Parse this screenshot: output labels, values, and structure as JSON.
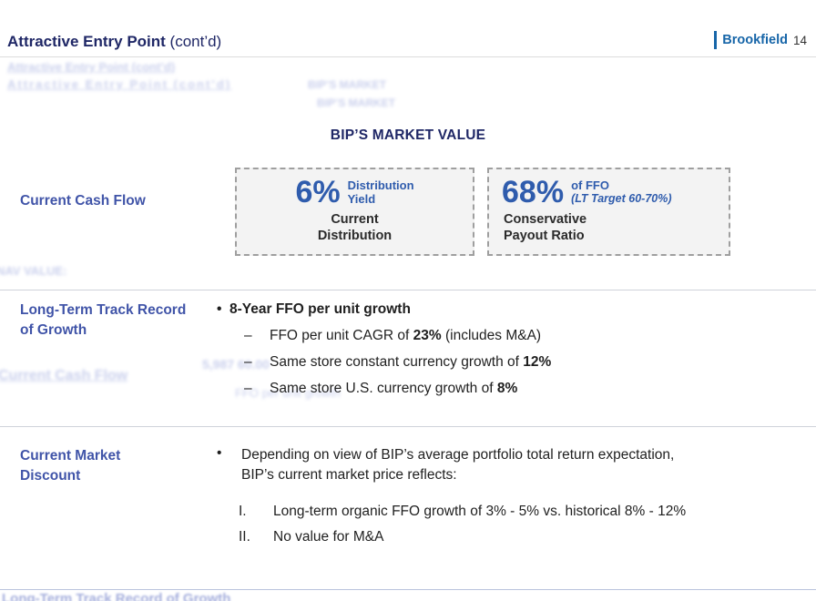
{
  "header": {
    "title_main": "Attractive Entry Point",
    "title_suffix": " (cont’d)",
    "brand": "Brookfield",
    "page_number": "14"
  },
  "heading": "BIP’S MARKET VALUE",
  "glyphs": {
    "bullet": "•",
    "dash": "–"
  },
  "colors": {
    "navy": "#1f2766",
    "label_blue": "#4054a8",
    "metric_blue": "#2f5cad",
    "brand_blue": "#1665a8"
  },
  "sections": {
    "cash_flow": {
      "label": "Current Cash Flow",
      "boxes": [
        {
          "big": "6%",
          "side_line1": "Distribution",
          "side_line2": "Yield",
          "caption_line1": "Current",
          "caption_line2": "Distribution"
        },
        {
          "big": "68%",
          "side_line1": "of FFO",
          "side_line2": "(LT Target 60-70%)",
          "caption_line1": "Conservative",
          "caption_line2": "Payout Ratio"
        }
      ]
    },
    "growth": {
      "label": "Long-Term Track Record of Growth",
      "bullet_title": "8-Year FFO per unit growth",
      "items": [
        {
          "pre": "FFO per unit CAGR of ",
          "strong": "23%",
          "post": " (includes M&A)"
        },
        {
          "pre": "Same store constant currency growth of ",
          "strong": "12%",
          "post": ""
        },
        {
          "pre": "Same store U.S. currency growth of ",
          "strong": "8%",
          "post": ""
        }
      ]
    },
    "discount": {
      "label": "Current Market Discount",
      "para_line1": "Depending on view of BIP’s average portfolio total return expectation,",
      "para_line2": "BIP’s current market price reflects:",
      "items": [
        {
          "num": "I.",
          "text": "Long-term organic FFO growth of 3% - 5% vs. historical 8% - 12%"
        },
        {
          "num": "II.",
          "text": "No value for M&A"
        }
      ]
    }
  },
  "ghost_artifacts": [
    "Attractive Entry Point (cont’d)",
    "Attractive Entry Point (cont’d)",
    "BIP’S MARKET",
    "BIP’S MARKET",
    "NAV VALUE:",
    "Current Cash Flow",
    "5,987   60.00",
    "FFO per unit growth",
    "Long-Term Track Record of Growth"
  ]
}
